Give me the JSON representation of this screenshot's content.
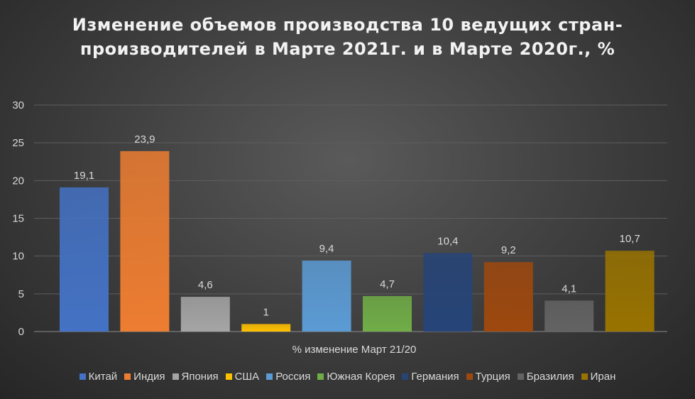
{
  "chart_data": {
    "type": "bar",
    "title": "Изменение объемов производства 10 ведущих стран-производителей в Марте 2021г. и в Марте 2020г., %",
    "xlabel": "% изменение Март 21/20",
    "ylabel": "",
    "ylim": [
      0,
      30
    ],
    "yticks": [
      "0",
      "5",
      "10",
      "15",
      "20",
      "25",
      "30"
    ],
    "grid": true,
    "legend_position": "bottom",
    "series": [
      {
        "name": "Китай",
        "value": 19.1,
        "label": "19,1",
        "color": "#4472c4"
      },
      {
        "name": "Индия",
        "value": 23.9,
        "label": "23,9",
        "color": "#ed7d31"
      },
      {
        "name": "Япония",
        "value": 4.6,
        "label": "4,6",
        "color": "#a5a5a5"
      },
      {
        "name": "США",
        "value": 1,
        "label": "1",
        "color": "#ffc000"
      },
      {
        "name": "Россия",
        "value": 9.4,
        "label": "9,4",
        "color": "#5b9bd5"
      },
      {
        "name": "Южная Корея",
        "value": 4.7,
        "label": "4,7",
        "color": "#70ad47"
      },
      {
        "name": "Германия",
        "value": 10.4,
        "label": "10,4",
        "color": "#264478"
      },
      {
        "name": "Турция",
        "value": 9.2,
        "label": "9,2",
        "color": "#9e480e"
      },
      {
        "name": "Бразилия",
        "value": 4.1,
        "label": "4,1",
        "color": "#636363"
      },
      {
        "name": "Иран",
        "value": 10.7,
        "label": "10,7",
        "color": "#997300"
      }
    ]
  }
}
